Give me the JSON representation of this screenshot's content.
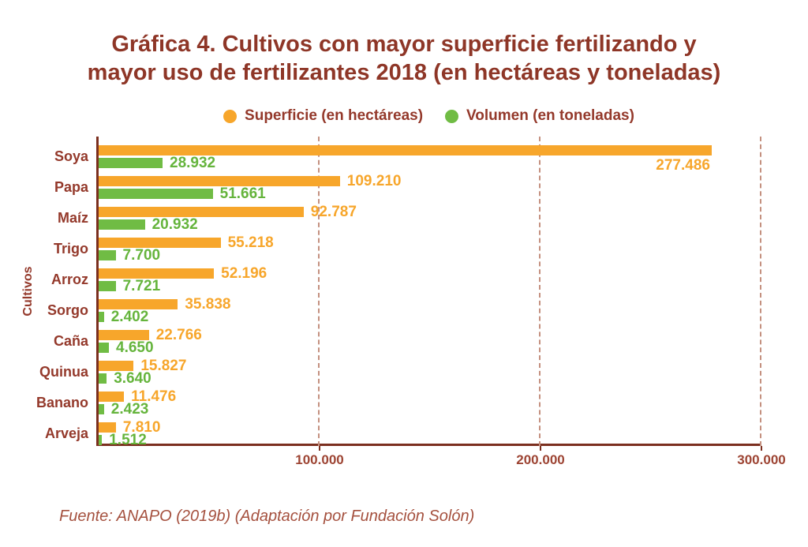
{
  "title": {
    "line1": "Gráfica 4. Cultivos con mayor superficie fertilizando y",
    "line2": "mayor uso de fertilizantes 2018 (en hectáreas y toneladas)"
  },
  "source": "Fuente: ANAPO (2019b) (Adaptación por Fundación Solón)",
  "colors": {
    "title_text": "#8E3627",
    "label_text": "#94392B",
    "tick_text": "#9D4433",
    "axis": "#7B2F1F",
    "gridline": "#C4907F",
    "superficie": "#F7A62B",
    "volumen_bar": "#70BC44",
    "volumen_text": "#65B43C"
  },
  "chart_data": {
    "type": "bar",
    "orientation": "horizontal",
    "title": "Gráfica 4. Cultivos con mayor superficie fertilizando y mayor uso de fertilizantes 2018 (en hectáreas y toneladas)",
    "ylabel": "Cultivos",
    "xlim": [
      0,
      300000
    ],
    "grid": "vertical-dashed",
    "legend_position": "top",
    "categories": [
      "Soya",
      "Papa",
      "Maíz",
      "Trigo",
      "Arroz",
      "Sorgo",
      "Caña",
      "Quinua",
      "Banano",
      "Arveja"
    ],
    "x_ticks": [
      {
        "value": 100000,
        "label": "100.000"
      },
      {
        "value": 200000,
        "label": "200.000"
      },
      {
        "value": 300000,
        "label": "300.000"
      }
    ],
    "series": [
      {
        "name": "Superficie (en hectáreas)",
        "color": "#F7A62B",
        "text_color": "#F7A62B",
        "values": [
          277486,
          109210,
          92787,
          55218,
          52196,
          35838,
          22766,
          15827,
          11476,
          7810
        ],
        "labels": [
          "277.486",
          "109.210",
          "92.787",
          "55.218",
          "52.196",
          "35.838",
          "22.766",
          "15.827",
          "11.476",
          "7.810"
        ],
        "label_placement": [
          "end-below",
          "right",
          "right",
          "right",
          "right",
          "right",
          "right",
          "right",
          "right",
          "right"
        ]
      },
      {
        "name": "Volumen (en toneladas)",
        "color": "#70BC44",
        "text_color": "#65B43C",
        "values": [
          28932,
          51661,
          20932,
          7700,
          7721,
          2402,
          4650,
          3640,
          2423,
          1512
        ],
        "labels": [
          "28.932",
          "51.661",
          "20.932",
          "7.700",
          "7.721",
          "2.402",
          "4.650",
          "3.640",
          "2.423",
          "1.512"
        ],
        "label_placement": [
          "right",
          "right",
          "right",
          "right",
          "right",
          "right",
          "right",
          "right",
          "right",
          "right"
        ]
      }
    ]
  }
}
